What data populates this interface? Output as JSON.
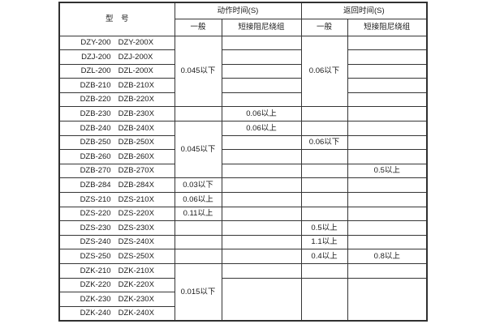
{
  "header": {
    "model_label": "型　号",
    "action_time_label": "动作时间(S)",
    "return_time_label": "返回时间(S)",
    "action_sub": [
      "一般",
      "短接阻尼绕组"
    ],
    "return_sub": [
      "一般",
      "短接阻尼绕组"
    ]
  },
  "rows": [
    {
      "models": [
        "DZY-200",
        "DZY-200X"
      ],
      "cells": [
        {
          "key": "act-general",
          "text": "0.045以下",
          "rowspan": 5
        },
        {
          "key": "act-damped",
          "text": ""
        },
        {
          "key": "ret-general",
          "text": "0.06以下",
          "rowspan": 5
        },
        {
          "key": "ret-damped",
          "text": ""
        }
      ]
    },
    {
      "models": [
        "DZJ-200",
        "DZJ-200X"
      ],
      "cells": [
        {
          "key": "act-damped",
          "text": ""
        },
        {
          "key": "ret-damped",
          "text": ""
        }
      ]
    },
    {
      "models": [
        "DZL-200",
        "DZL-200X"
      ],
      "cells": [
        {
          "key": "act-damped",
          "text": ""
        },
        {
          "key": "ret-damped",
          "text": ""
        }
      ]
    },
    {
      "models": [
        "DZB-210",
        "DZB-210X"
      ],
      "cells": [
        {
          "key": "act-damped",
          "text": ""
        },
        {
          "key": "ret-damped",
          "text": ""
        }
      ]
    },
    {
      "models": [
        "DZB-220",
        "DZB-220X"
      ],
      "cells": [
        {
          "key": "act-damped",
          "text": ""
        },
        {
          "key": "ret-damped",
          "text": ""
        }
      ]
    },
    {
      "models": [
        "DZB-230",
        "DZB-230X"
      ],
      "cells": [
        {
          "key": "act-general",
          "text": ""
        },
        {
          "key": "act-damped",
          "text": "0.06以上"
        },
        {
          "key": "ret-general",
          "text": ""
        },
        {
          "key": "ret-damped",
          "text": ""
        }
      ]
    },
    {
      "models": [
        "DZB-240",
        "DZB-240X"
      ],
      "cells": [
        {
          "key": "act-general",
          "text": "0.045以下",
          "rowspan": 4
        },
        {
          "key": "act-damped",
          "text": "0.06以上"
        },
        {
          "key": "ret-general",
          "text": ""
        },
        {
          "key": "ret-damped",
          "text": ""
        }
      ]
    },
    {
      "models": [
        "DZB-250",
        "DZB-250X"
      ],
      "cells": [
        {
          "key": "act-damped",
          "text": ""
        },
        {
          "key": "ret-general",
          "text": "0.06以下"
        },
        {
          "key": "ret-damped",
          "text": ""
        }
      ]
    },
    {
      "models": [
        "DZB-260",
        "DZB-260X"
      ],
      "cells": [
        {
          "key": "act-damped",
          "text": ""
        },
        {
          "key": "ret-general",
          "text": ""
        },
        {
          "key": "ret-damped",
          "text": ""
        }
      ]
    },
    {
      "models": [
        "DZB-270",
        "DZB-270X"
      ],
      "cells": [
        {
          "key": "act-damped",
          "text": ""
        },
        {
          "key": "ret-general",
          "text": ""
        },
        {
          "key": "ret-damped",
          "text": "0.5以上"
        }
      ]
    },
    {
      "models": [
        "DZB-284",
        "DZB-284X"
      ],
      "cells": [
        {
          "key": "act-general",
          "text": "0.03以下"
        },
        {
          "key": "act-damped",
          "text": ""
        },
        {
          "key": "ret-general",
          "text": ""
        },
        {
          "key": "ret-damped",
          "text": ""
        }
      ]
    },
    {
      "models": [
        "DZS-210",
        "DZS-210X"
      ],
      "cells": [
        {
          "key": "act-general",
          "text": "0.06以上"
        },
        {
          "key": "act-damped",
          "text": ""
        },
        {
          "key": "ret-general",
          "text": ""
        },
        {
          "key": "ret-damped",
          "text": ""
        }
      ]
    },
    {
      "models": [
        "DZS-220",
        "DZS-220X"
      ],
      "cells": [
        {
          "key": "act-general",
          "text": "0.11以上"
        },
        {
          "key": "act-damped",
          "text": ""
        },
        {
          "key": "ret-general",
          "text": ""
        },
        {
          "key": "ret-damped",
          "text": ""
        }
      ]
    },
    {
      "models": [
        "DZS-230",
        "DZS-230X"
      ],
      "cells": [
        {
          "key": "act-general",
          "text": ""
        },
        {
          "key": "act-damped",
          "text": ""
        },
        {
          "key": "ret-general",
          "text": "0.5以上"
        },
        {
          "key": "ret-damped",
          "text": ""
        }
      ]
    },
    {
      "models": [
        "DZS-240",
        "DZS-240X"
      ],
      "cells": [
        {
          "key": "act-general",
          "text": ""
        },
        {
          "key": "act-damped",
          "text": ""
        },
        {
          "key": "ret-general",
          "text": "1.1以上"
        },
        {
          "key": "ret-damped",
          "text": ""
        }
      ]
    },
    {
      "models": [
        "DZS-250",
        "DZS-250X"
      ],
      "cells": [
        {
          "key": "act-general",
          "text": ""
        },
        {
          "key": "act-damped",
          "text": ""
        },
        {
          "key": "ret-general",
          "text": "0.4以上"
        },
        {
          "key": "ret-damped",
          "text": "0.8以上"
        }
      ]
    },
    {
      "models": [
        "DZK-210",
        "DZK-210X"
      ],
      "cells": [
        {
          "key": "act-general",
          "text": "0.015以下",
          "rowspan": 4
        },
        {
          "key": "act-damped",
          "text": ""
        },
        {
          "key": "ret-general",
          "text": ""
        },
        {
          "key": "ret-damped",
          "text": ""
        }
      ]
    },
    {
      "models": [
        "DZK-220",
        "DZK-220X"
      ],
      "cells": [
        {
          "key": "act-damped",
          "text": "",
          "rowspan": 3
        },
        {
          "key": "ret-general",
          "text": "",
          "rowspan": 3
        },
        {
          "key": "ret-damped",
          "text": "",
          "rowspan": 3
        }
      ]
    },
    {
      "models": [
        "DZK-230",
        "DZK-230X"
      ],
      "cells": []
    },
    {
      "models": [
        "DZK-240",
        "DZK-240X"
      ],
      "cells": []
    }
  ]
}
